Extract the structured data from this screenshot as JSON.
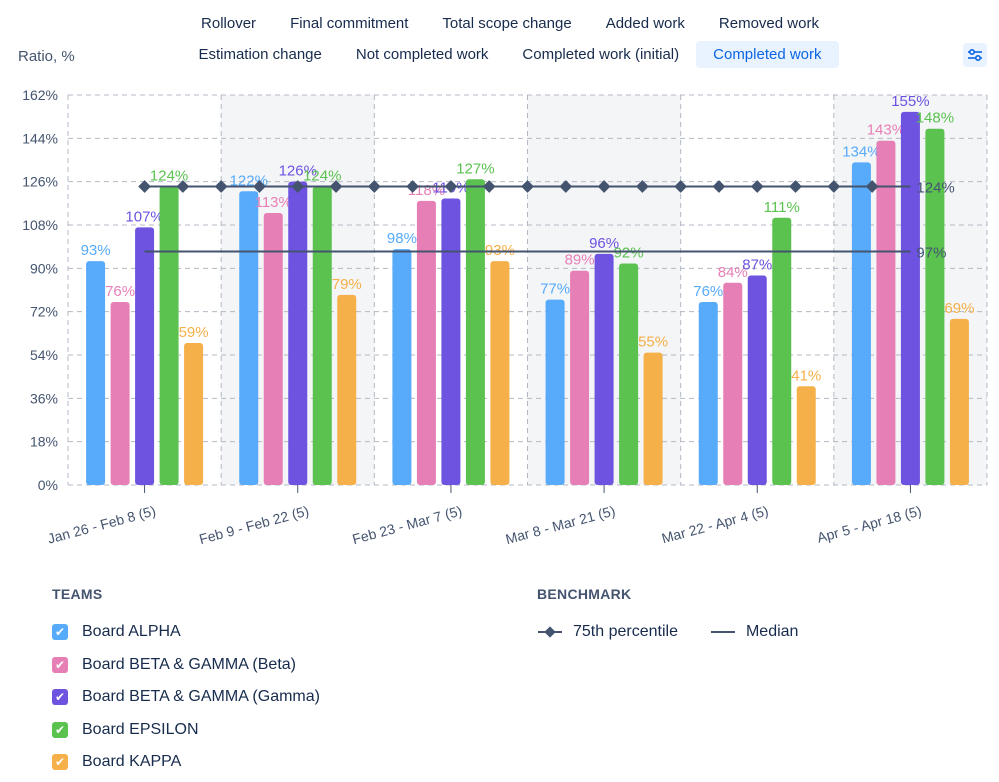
{
  "tabs": {
    "row1": [
      "Rollover",
      "Final commitment",
      "Total scope change",
      "Added work",
      "Removed work"
    ],
    "row2": [
      "Estimation change",
      "Not completed work",
      "Completed work (initial)",
      "Completed work"
    ],
    "selected": "Completed work"
  },
  "settings_icon": "sliders-icon",
  "chart_data": {
    "type": "bar",
    "ylabel": "Ratio, %",
    "ylim": [
      0,
      162
    ],
    "yticks": [
      "0%",
      "18%",
      "36%",
      "54%",
      "72%",
      "90%",
      "108%",
      "126%",
      "144%",
      "162%"
    ],
    "grid": true,
    "categories": [
      "Jan 26 - Feb 8 (5)",
      "Feb 9 - Feb 22 (5)",
      "Feb 23 - Mar 7 (5)",
      "Mar 8 - Mar 21 (5)",
      "Mar 22 - Apr 4 (5)",
      "Apr 5 - Apr 18 (5)"
    ],
    "series": [
      {
        "name": "Board ALPHA",
        "color": "#57abfa",
        "values": [
          93,
          122,
          98,
          77,
          76,
          134
        ]
      },
      {
        "name": "Board BETA & GAMMA (Beta)",
        "color": "#e67fb6",
        "values": [
          76,
          113,
          118,
          89,
          84,
          143
        ]
      },
      {
        "name": "Board BETA & GAMMA (Gamma)",
        "color": "#6e52e0",
        "values": [
          107,
          126,
          119,
          96,
          87,
          155
        ]
      },
      {
        "name": "Board EPSILON",
        "color": "#5bc250",
        "values": [
          124,
          124,
          127,
          92,
          111,
          148
        ]
      },
      {
        "name": "Board KAPPA",
        "color": "#f5b04a",
        "values": [
          59,
          79,
          93,
          55,
          41,
          69
        ]
      }
    ],
    "benchmarks": [
      {
        "name": "75th percentile",
        "value": 124,
        "label": "124%",
        "color": "#44546f",
        "marker": "diamond"
      },
      {
        "name": "Median",
        "value": 97,
        "label": "97%",
        "color": "#44546f",
        "marker": "none"
      }
    ]
  },
  "legend": {
    "teams_title": "TEAMS",
    "benchmark_title": "BENCHMARK"
  }
}
